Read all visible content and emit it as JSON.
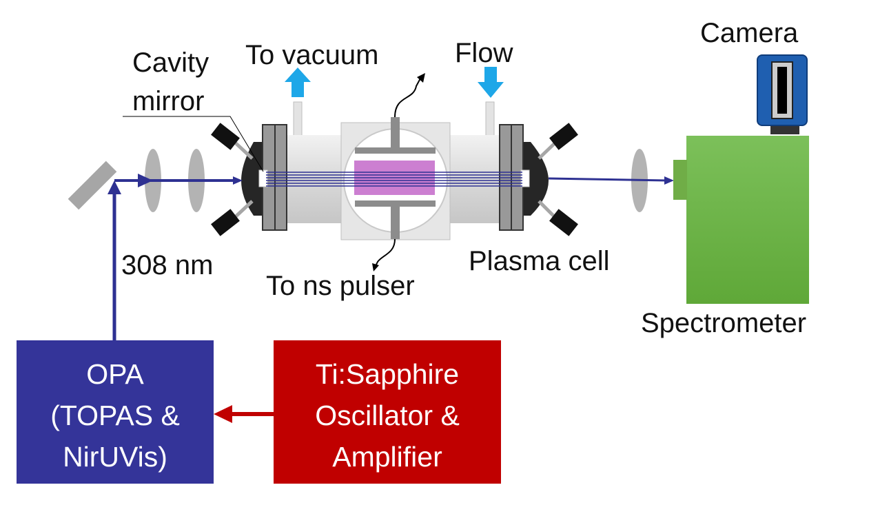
{
  "labels": {
    "cavity_mirror_line1": "Cavity",
    "cavity_mirror_line2": "mirror",
    "to_vacuum": "To vacuum",
    "flow": "Flow",
    "camera": "Camera",
    "wavelength": "308 nm",
    "to_ns_pulser": "To ns pulser",
    "plasma_cell": "Plasma cell",
    "spectrometer": "Spectrometer"
  },
  "boxes": {
    "opa": {
      "lines": [
        "OPA",
        "(TOPAS &",
        "NirUVis)"
      ]
    },
    "laser": {
      "lines": [
        "Ti:Sapphire",
        "Oscillator &",
        "Amplifier"
      ]
    }
  },
  "colors": {
    "beam": "#2e3192",
    "opa_box": "#343499",
    "laser_box": "#c00000",
    "laser_arrow": "#c00000",
    "spectrometer": "#70ad47",
    "camera": "#1f5fb0",
    "arrow_cyan": "#1ea7e8",
    "plasma": "#cc7fd1"
  }
}
